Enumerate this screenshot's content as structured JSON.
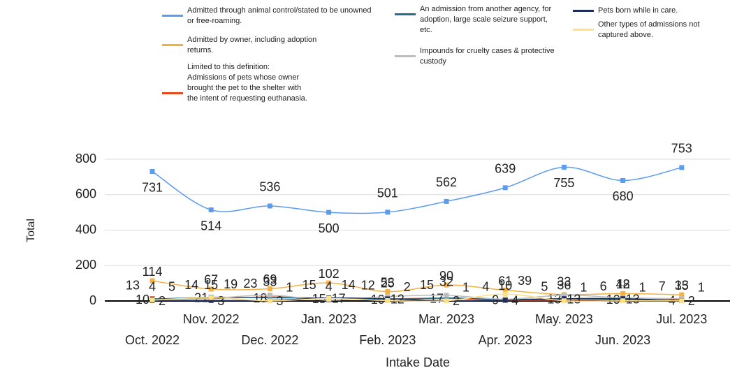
{
  "chart_data": {
    "type": "line",
    "x_label": "Intake Date",
    "y_label": "Total",
    "categories": [
      "Oct. 2022",
      "Nov. 2022",
      "Dec. 2022",
      "Jan. 2023",
      "Feb. 2023",
      "Mar. 2023",
      "Apr. 2023",
      "May. 2023",
      "Jun. 2023",
      "Jul. 2023"
    ],
    "series": [
      {
        "name": "Admitted through animal control/stated to be unowned or free-roaming.",
        "color": "#5b9bf0",
        "values": [
          731,
          514,
          536,
          500,
          501,
          562,
          639,
          755,
          680,
          753
        ]
      },
      {
        "name": "Admitted by owner, including adoption returns.",
        "color": "#f5b041",
        "values": [
          114,
          67,
          69,
          102,
          53,
          90,
          61,
          36,
          42,
          35
        ]
      },
      {
        "name": "Limited to this definition: Admissions of pets whose owner brought the pet to the shelter with the intent of requesting euthanasia.",
        "color": "#e84a1d",
        "values": [
          13,
          14,
          23,
          15,
          12,
          15,
          4,
          5,
          6,
          7
        ]
      },
      {
        "name": "An admission from another agency, for adoption, large scale seizure support, etc.",
        "color": "#1f6e8c",
        "values": [
          10,
          21,
          18,
          15,
          10,
          17,
          9,
          13,
          10,
          4
        ]
      },
      {
        "name": "Impounds for cruelty cases & protective custody",
        "color": "#bdbdbd",
        "values": [
          4,
          15,
          33,
          4,
          25,
          32,
          10,
          33,
          18,
          13
        ]
      },
      {
        "name": "Pets born while in care.",
        "color": "#1f2d5a",
        "values": [
          2,
          3,
          3,
          17,
          12,
          2,
          4,
          13,
          13,
          2
        ]
      },
      {
        "name": "Other types of admissions not captured above.",
        "color": "#ffe082",
        "values": [
          5,
          19,
          1,
          14,
          2,
          1,
          39,
          1,
          1,
          1
        ]
      }
    ],
    "ylim": [
      0,
      800
    ],
    "yticks": [
      0,
      200,
      400,
      600,
      800
    ],
    "grid": true
  }
}
